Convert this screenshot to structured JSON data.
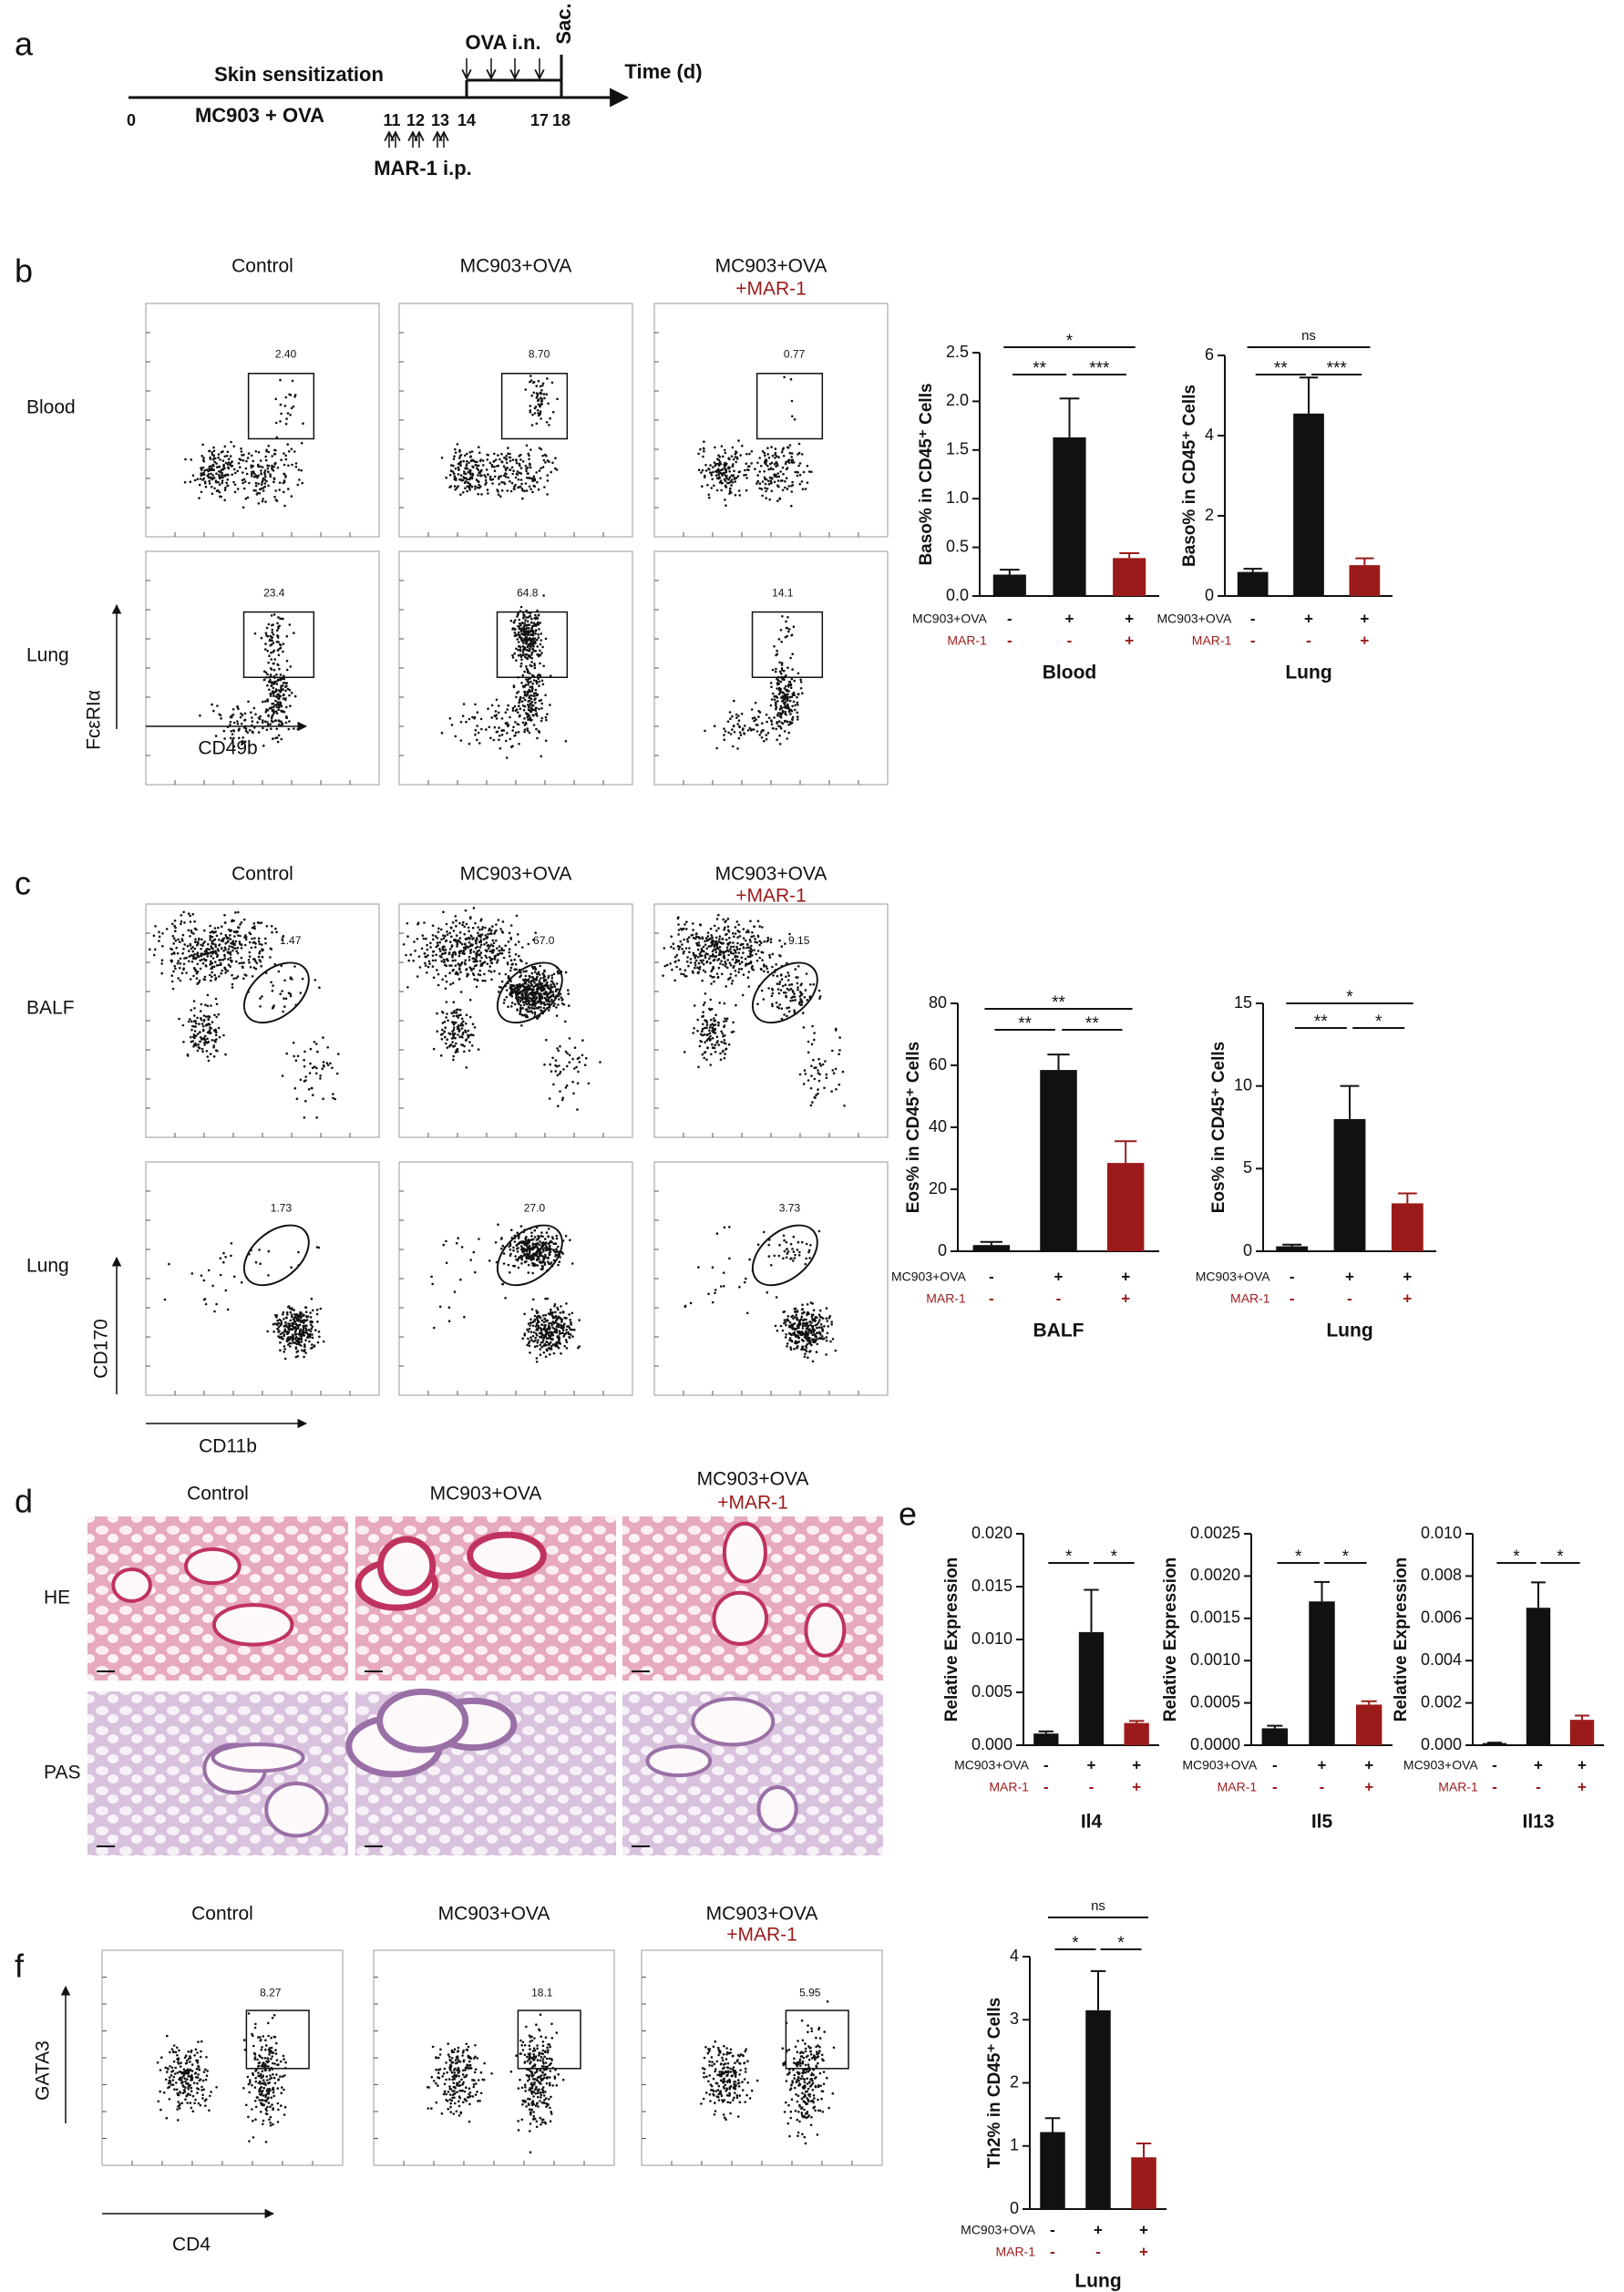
{
  "panel_labels": [
    "a",
    "b",
    "c",
    "d",
    "e",
    "f"
  ],
  "timeline": {
    "phase": "Skin sensitization",
    "treatment": "MC903 + OVA",
    "challenge": "OVA i.n.",
    "end": "Sac.",
    "axis": "Time (d)",
    "injection": "MAR-1 i.p.",
    "days": [
      "0",
      "11",
      "12",
      "13",
      "14",
      "17",
      "18"
    ]
  },
  "flow": [
    {
      "columns": [
        "Control",
        "MC903+OVA",
        "MC903+OVA"
      ],
      "extra": "+MAR-1",
      "rows": [
        "Blood",
        "Lung"
      ],
      "gates": [
        [
          "2.40",
          "8.70",
          "0.77"
        ],
        [
          "23.4",
          "64.8",
          "14.1"
        ]
      ],
      "xaxis": "CD49b",
      "yaxis": "FcεRIα"
    },
    {
      "columns": [
        "Control",
        "MC903+OVA",
        "MC903+OVA"
      ],
      "extra": "+MAR-1",
      "rows": [
        "BALF",
        "Lung"
      ],
      "gates": [
        [
          "1.47",
          "67.0",
          "9.15"
        ],
        [
          "1.73",
          "27.0",
          "3.73"
        ]
      ],
      "xaxis": "CD11b",
      "yaxis": "CD170"
    },
    {
      "columns": [
        "Control",
        "MC903+OVA",
        "MC903+OVA"
      ],
      "extra": "+MAR-1",
      "rows": [],
      "gates": [
        [
          "8.27",
          "18.1",
          "5.95"
        ]
      ],
      "xaxis": "CD4",
      "yaxis": "GATA3"
    }
  ],
  "histology": {
    "columns": [
      "Control",
      "MC903+OVA",
      "MC903+OVA"
    ],
    "extra": "+MAR-1",
    "rows": [
      "HE",
      "PAS"
    ]
  },
  "chart_data": [
    {
      "type": "bar",
      "ylabel": "Baso% in CD45⁺ Cells",
      "xlabel": "Blood",
      "values": [
        0.22,
        1.63,
        0.39
      ],
      "errors": [
        0.05,
        0.4,
        0.05
      ],
      "colors": [
        "#111111",
        "#111111",
        "#9b1b1b"
      ],
      "ylim": [
        0,
        2.5
      ],
      "yticks": [
        {
          "value": 0,
          "label": "0.0"
        },
        0.5,
        {
          "value": 1,
          "label": "1.0"
        },
        1.5,
        {
          "value": 2,
          "label": "2.0"
        },
        2.5
      ],
      "groups": [
        {
          "name": "MC903+OVA",
          "color": "#111111",
          "signs": [
            "-",
            "+",
            "+"
          ]
        },
        {
          "name": "MAR-1",
          "color": "#9b1b1b",
          "signs": [
            "-",
            "-",
            "+"
          ]
        }
      ],
      "significance": [
        {
          "from": 0,
          "to": 1,
          "label": "**"
        },
        {
          "from": 1,
          "to": 2,
          "label": "***"
        },
        {
          "from": 0,
          "to": 2,
          "label": "*"
        }
      ]
    },
    {
      "type": "bar",
      "ylabel": "Baso% in CD45⁺ Cells",
      "xlabel": "Lung",
      "values": [
        0.6,
        4.55,
        0.77
      ],
      "errors": [
        0.08,
        0.9,
        0.17
      ],
      "colors": [
        "#111111",
        "#111111",
        "#9b1b1b"
      ],
      "ylim": [
        0,
        6
      ],
      "yticks": [
        0,
        2,
        4,
        6
      ],
      "groups": [
        {
          "name": "MC903+OVA",
          "color": "#111111",
          "signs": [
            "-",
            "+",
            "+"
          ]
        },
        {
          "name": "MAR-1",
          "color": "#9b1b1b",
          "signs": [
            "-",
            "-",
            "+"
          ]
        }
      ],
      "significance": [
        {
          "from": 0,
          "to": 1,
          "label": "**"
        },
        {
          "from": 1,
          "to": 2,
          "label": "***"
        },
        {
          "from": 0,
          "to": 2,
          "label": "ns"
        }
      ]
    },
    {
      "type": "bar",
      "ylabel": "Eos% in CD45⁺ Cells",
      "xlabel": "BALF",
      "values": [
        2,
        58.5,
        28.5
      ],
      "errors": [
        1,
        5,
        7
      ],
      "colors": [
        "#111111",
        "#111111",
        "#9b1b1b"
      ],
      "ylim": [
        0,
        80
      ],
      "yticks": [
        0,
        20,
        40,
        60,
        80
      ],
      "groups": [
        {
          "name": "MC903+OVA",
          "color": "#111111",
          "signs": [
            "-",
            "+",
            "+"
          ]
        },
        {
          "name": "MAR-1",
          "color": "#9b1b1b",
          "signs": [
            "-",
            "-",
            "+"
          ]
        }
      ],
      "significance": [
        {
          "from": 0,
          "to": 1,
          "label": "**"
        },
        {
          "from": 1,
          "to": 2,
          "label": "**"
        },
        {
          "from": 0,
          "to": 2,
          "label": "**"
        }
      ]
    },
    {
      "type": "bar",
      "ylabel": "Eos% in CD45⁺ Cells",
      "xlabel": "Lung",
      "values": [
        0.3,
        8,
        2.9
      ],
      "errors": [
        0.1,
        2,
        0.6
      ],
      "colors": [
        "#111111",
        "#111111",
        "#9b1b1b"
      ],
      "ylim": [
        0,
        15
      ],
      "yticks": [
        0,
        5,
        10,
        15
      ],
      "groups": [
        {
          "name": "MC903+OVA",
          "color": "#111111",
          "signs": [
            "-",
            "+",
            "+"
          ]
        },
        {
          "name": "MAR-1",
          "color": "#9b1b1b",
          "signs": [
            "-",
            "-",
            "+"
          ]
        }
      ],
      "significance": [
        {
          "from": 0,
          "to": 1,
          "label": "**"
        },
        {
          "from": 1,
          "to": 2,
          "label": "*"
        },
        {
          "from": 0,
          "to": 2,
          "label": "*"
        }
      ]
    },
    {
      "type": "bar",
      "ylabel": "Relative Expression",
      "xlabel": "Il4",
      "values": [
        0.0011,
        0.0107,
        0.0021
      ],
      "errors": [
        0.0002,
        0.004,
        0.0002
      ],
      "colors": [
        "#111111",
        "#111111",
        "#9b1b1b"
      ],
      "ylim": [
        0,
        0.02
      ],
      "yticks": [
        {
          "value": 0,
          "label": "0.000"
        },
        0.005,
        {
          "value": 0.01,
          "label": "0.010"
        },
        0.015,
        {
          "value": 0.02,
          "label": "0.020"
        }
      ],
      "groups": [
        {
          "name": "MC903+OVA",
          "color": "#111111",
          "signs": [
            "-",
            "+",
            "+"
          ]
        },
        {
          "name": "MAR-1",
          "color": "#9b1b1b",
          "signs": [
            "-",
            "-",
            "+"
          ]
        }
      ],
      "significance": [
        {
          "from": 0,
          "to": 1,
          "label": "*"
        },
        {
          "from": 1,
          "to": 2,
          "label": "*"
        }
      ]
    },
    {
      "type": "bar",
      "ylabel": "Relative Expression",
      "xlabel": "Il5",
      "values": [
        0.0002,
        0.0017,
        0.00048
      ],
      "errors": [
        3e-05,
        0.00023,
        4e-05
      ],
      "colors": [
        "#111111",
        "#111111",
        "#9b1b1b"
      ],
      "ylim": [
        0,
        0.0025
      ],
      "yticks": [
        {
          "value": 0,
          "label": "0.0000"
        },
        0.0005,
        {
          "value": 0.001,
          "label": "0.0010"
        },
        0.0015,
        {
          "value": 0.002,
          "label": "0.0020"
        },
        0.0025
      ],
      "groups": [
        {
          "name": "MC903+OVA",
          "color": "#111111",
          "signs": [
            "-",
            "+",
            "+"
          ]
        },
        {
          "name": "MAR-1",
          "color": "#9b1b1b",
          "signs": [
            "-",
            "-",
            "+"
          ]
        }
      ],
      "significance": [
        {
          "from": 0,
          "to": 1,
          "label": "*"
        },
        {
          "from": 1,
          "to": 2,
          "label": "*"
        }
      ]
    },
    {
      "type": "bar",
      "ylabel": "Relative Expression",
      "xlabel": "Il13",
      "values": [
        0.0001,
        0.0065,
        0.0012
      ],
      "errors": [
        2e-05,
        0.0012,
        0.0002
      ],
      "colors": [
        "#111111",
        "#111111",
        "#9b1b1b"
      ],
      "ylim": [
        0,
        0.01
      ],
      "yticks": [
        {
          "value": 0,
          "label": "0.000"
        },
        0.002,
        0.004,
        0.006,
        0.008,
        {
          "value": 0.01,
          "label": "0.010"
        }
      ],
      "groups": [
        {
          "name": "MC903+OVA",
          "color": "#111111",
          "signs": [
            "-",
            "+",
            "+"
          ]
        },
        {
          "name": "MAR-1",
          "color": "#9b1b1b",
          "signs": [
            "-",
            "-",
            "+"
          ]
        }
      ],
      "significance": [
        {
          "from": 0,
          "to": 1,
          "label": "*"
        },
        {
          "from": 1,
          "to": 2,
          "label": "*"
        }
      ]
    },
    {
      "type": "bar",
      "ylabel": "Th2% in CD45⁺ Cells",
      "xlabel": "Lung",
      "values": [
        1.22,
        3.15,
        0.82
      ],
      "errors": [
        0.22,
        0.62,
        0.22
      ],
      "colors": [
        "#111111",
        "#111111",
        "#9b1b1b"
      ],
      "ylim": [
        0,
        4
      ],
      "yticks": [
        0,
        1,
        2,
        3,
        4
      ],
      "groups": [
        {
          "name": "MC903+OVA",
          "color": "#111111",
          "signs": [
            "-",
            "+",
            "+"
          ]
        },
        {
          "name": "MAR-1",
          "color": "#9b1b1b",
          "signs": [
            "-",
            "-",
            "+"
          ]
        }
      ],
      "significance": [
        {
          "from": 0,
          "to": 1,
          "label": "*"
        },
        {
          "from": 1,
          "to": 2,
          "label": "*"
        },
        {
          "from": 0,
          "to": 2,
          "label": "ns"
        }
      ]
    }
  ]
}
